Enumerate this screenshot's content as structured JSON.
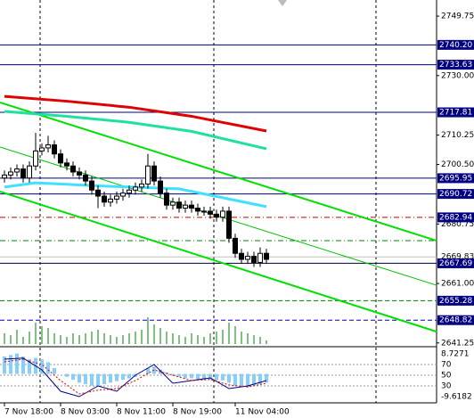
{
  "chart_data": {
    "type": "candlestick",
    "ylim": [
      2640.3,
      2755.1
    ],
    "yticks": [
      2749.75,
      {
        "value": 2730.0,
        "label": "2730.00"
      },
      2710.25,
      {
        "value": 2700.5,
        "label": "2700.50"
      },
      2680.75,
      {
        "value": 2661.0,
        "label": "2661.00"
      },
      2641.25
    ],
    "xticks": [
      {
        "value": 0,
        "label": "7 Nov 18:00"
      },
      {
        "value": 9,
        "label": "8 Nov 03:00"
      },
      {
        "value": 18,
        "label": "8 Nov 11:00"
      },
      {
        "value": 27,
        "label": "8 Nov 19:00"
      },
      {
        "value": 37,
        "label": "11 Nov 04:00"
      }
    ],
    "open": [
      2696,
      2697,
      2698,
      2699,
      2696,
      2700,
      2705,
      2706,
      2707,
      2704,
      2701,
      2700,
      2698,
      2697,
      2695,
      2692,
      2690,
      2688,
      2689,
      2690,
      2691,
      2692,
      2693,
      2694,
      2700,
      2695,
      2691,
      2687,
      2688,
      2686,
      2687,
      2686,
      2685,
      2685,
      2684,
      2683,
      2685,
      2676,
      2671,
      2669,
      2670,
      2668,
      2671
    ],
    "high": [
      2698.5,
      2699.5,
      2700.5,
      2700.5,
      2701.5,
      2711,
      2707.5,
      2710,
      2708.5,
      2705.5,
      2702.5,
      2701.5,
      2699.5,
      2698.5,
      2696.5,
      2693.5,
      2691.5,
      2690.5,
      2691.5,
      2692.5,
      2693.5,
      2694.5,
      2695.5,
      2704,
      2701.5,
      2696.5,
      2692.5,
      2689.5,
      2689.5,
      2688.5,
      2688.5,
      2687.5,
      2686.5,
      2686.5,
      2685.5,
      2686.5,
      2686.5,
      2677.5,
      2672.5,
      2671.5,
      2671.5,
      2673,
      2672.5
    ],
    "low": [
      2694.5,
      2695.5,
      2696.5,
      2694.5,
      2694.5,
      2698.5,
      2703.5,
      2704.5,
      2702.5,
      2699.5,
      2698.5,
      2696.5,
      2695.5,
      2693.5,
      2690.5,
      2686,
      2686.5,
      2686.5,
      2687.5,
      2688.5,
      2689.5,
      2690.5,
      2691.5,
      2692.5,
      2693.5,
      2689.5,
      2685.5,
      2685.5,
      2684.5,
      2684.5,
      2684.5,
      2683.5,
      2683.5,
      2682.5,
      2681.5,
      2681.5,
      2674.5,
      2669.5,
      2667.5,
      2667.5,
      2666.5,
      2666.5,
      2667.5
    ],
    "close": [
      2697,
      2698,
      2699,
      2696,
      2700,
      2705,
      2706,
      2707,
      2704,
      2701,
      2700,
      2698,
      2697,
      2695,
      2692,
      2690,
      2688,
      2689,
      2690,
      2691,
      2692,
      2693,
      2694,
      2700,
      2695,
      2691,
      2687,
      2688,
      2686,
      2687,
      2686,
      2685,
      2685,
      2684,
      2683,
      2685,
      2676,
      2671,
      2669,
      2670,
      2668,
      2671,
      2669
    ],
    "moving_averages": [
      {
        "color": "#e00000",
        "x": [
          0,
          10,
          20,
          30,
          42
        ],
        "values": [
          2723.1,
          2721.5,
          2719.5,
          2716.5,
          2711.6
        ]
      },
      {
        "color": "#20e0a0",
        "x": [
          0,
          10,
          20,
          30,
          42
        ],
        "values": [
          2718.1,
          2716.5,
          2714.5,
          2711.5,
          2705.7
        ]
      },
      {
        "color": "#40e0ff",
        "x": [
          0,
          5,
          15,
          28,
          42
        ],
        "values": [
          2693.0,
          2694.4,
          2693.4,
          2692.4,
          2686.5
        ]
      }
    ],
    "trendlines": [
      {
        "color": "#00e000",
        "values": [
          2721.1,
          2675.2
        ]
      },
      {
        "color": "#00e000",
        "values": [
          2691.5,
          2645.0
        ]
      },
      {
        "color": "#00c000",
        "values": [
          2706.3,
          2660.4
        ]
      }
    ],
    "levels": [
      {
        "value": 2740.2,
        "label": "2740.20",
        "color": "#000080",
        "style": "solid"
      },
      {
        "value": 2733.63,
        "label": "2733.63",
        "color": "#000080",
        "style": "solid"
      },
      {
        "value": 2717.81,
        "label": "2717.81",
        "color": "#000080",
        "style": "solid"
      },
      {
        "value": 2695.95,
        "label": "2695.95",
        "color": "#000080",
        "style": "solid"
      },
      {
        "value": 2690.72,
        "label": "2690.72",
        "color": "#000080",
        "style": "solid"
      },
      {
        "value": 2682.94,
        "label": "2682.94",
        "color": "#c00000",
        "style": "dashdot"
      },
      {
        "value": 2675.2,
        "color": "#008000",
        "style": "dashdot"
      },
      {
        "value": 2667.69,
        "label": "2667.69",
        "color": "#000040",
        "style": "solid"
      },
      {
        "value": 2655.28,
        "label": "2655.28",
        "color": "#008000",
        "style": "dashed"
      },
      {
        "value": 2648.82,
        "label": "2648.82",
        "color": "#0000c0",
        "style": "dashed"
      }
    ],
    "bid": {
      "value": 2669.83,
      "label": "2669.83"
    },
    "volume": {
      "color": "#008000",
      "vlim": [
        0,
        100
      ],
      "values": [
        30,
        25,
        40,
        20,
        35,
        60,
        50,
        45,
        30,
        25,
        20,
        30,
        25,
        30,
        35,
        40,
        30,
        25,
        20,
        25,
        30,
        35,
        40,
        75,
        55,
        45,
        35,
        30,
        25,
        20,
        30,
        25,
        20,
        30,
        35,
        40,
        60,
        50,
        35,
        30,
        25,
        20,
        10
      ]
    },
    "oscillator": {
      "ylim": [
        0,
        100
      ],
      "yticks": [
        70,
        50,
        30
      ],
      "macd_lim": [
        -9.6182,
        8.7271
      ],
      "macd_ticks": [
        8.7271,
        -9.6182
      ],
      "macd": [
        6,
        6.5,
        7,
        6,
        5,
        5.5,
        5,
        4,
        2,
        0,
        -1,
        -2,
        -3,
        -3.5,
        -4,
        -4,
        -3.5,
        -3,
        -2.5,
        -2,
        -1.5,
        -1,
        0,
        2,
        2.5,
        1.5,
        0.5,
        -0.5,
        -1,
        -1.5,
        -1.5,
        -1.8,
        -2,
        -2,
        -2.2,
        -2.2,
        -3,
        -4,
        -4.5,
        -4.5,
        -4,
        -3.5,
        -3
      ],
      "macd_color": "#87cefa",
      "x": [
        0,
        3,
        6,
        9,
        12,
        15,
        18,
        21,
        24,
        27,
        30,
        33,
        36,
        39,
        42
      ],
      "k": [
        80,
        82,
        60,
        20,
        10,
        30,
        20,
        50,
        70,
        35,
        40,
        45,
        25,
        30,
        40
      ],
      "d": [
        75,
        80,
        70,
        40,
        15,
        22,
        25,
        40,
        60,
        50,
        40,
        42,
        32,
        28,
        35
      ],
      "k_color": "#000080",
      "d_color": "#e00000"
    }
  }
}
